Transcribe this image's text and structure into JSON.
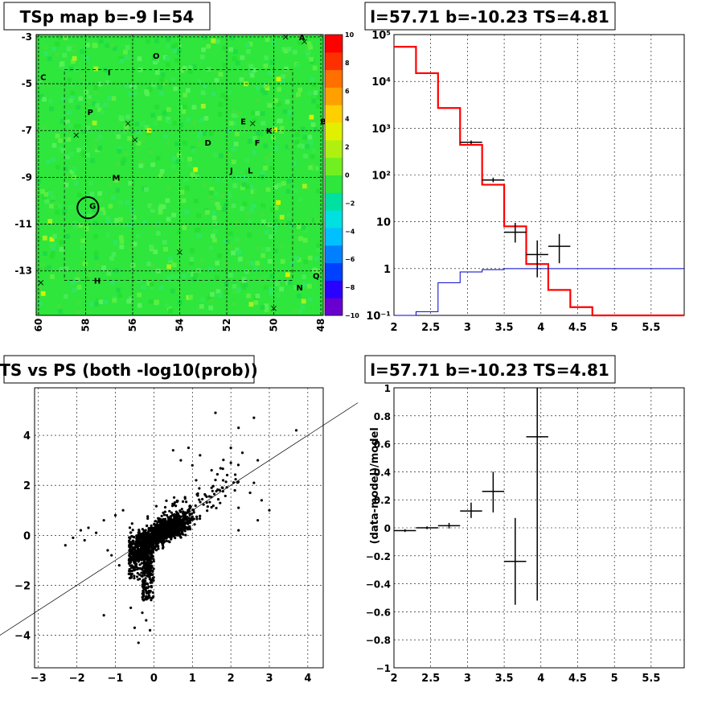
{
  "panels": {
    "tsmap": {
      "title": "TSp map b=-9 l=54"
    },
    "spectrum": {
      "title": "l=57.71 b=-10.23 TS=4.81"
    },
    "scatter": {
      "title": "TS vs PS (both -log10(prob))"
    },
    "residual": {
      "title": "l=57.71 b=-10.23 TS=4.81"
    }
  },
  "colors": {
    "map_bg": "#2ee63c",
    "data": "#000000",
    "model": "#ff0000",
    "source": "#0000cc",
    "grid": "#000000"
  },
  "chart_data": [
    {
      "type": "heatmap",
      "title": "TSp map b=-9 l=54",
      "x_ticks": [
        "60",
        "58",
        "56",
        "54",
        "52",
        "50",
        "48"
      ],
      "xlim": [
        60.1,
        47.9
      ],
      "y_ticks": [
        "-3",
        "-5",
        "-7",
        "-9",
        "-11",
        "-13"
      ],
      "ylim": [
        -14.9,
        -2.9
      ],
      "colorbar": {
        "range": [
          -10,
          10
        ],
        "ticks": [
          "10",
          "8",
          "6",
          "4",
          "2",
          "0",
          "−2",
          "−4",
          "−6",
          "−8",
          "−10"
        ],
        "colors": [
          "#6a00d0",
          "#2a00ff",
          "#0040ff",
          "#0080ff",
          "#00c0ff",
          "#00e0e0",
          "#00e0a0",
          "#2ee63c",
          "#70f020",
          "#b0f010",
          "#e0f000",
          "#ffd000",
          "#ffa000",
          "#ff7000",
          "#ff3000",
          "#ff0000"
        ]
      },
      "source_labels": [
        {
          "text": "A",
          "l": 48.8,
          "b": -3.0
        },
        {
          "text": "O",
          "l": 55.0,
          "b": -3.8
        },
        {
          "text": "C",
          "l": 59.8,
          "b": -4.7
        },
        {
          "text": "I",
          "l": 57.0,
          "b": -4.5
        },
        {
          "text": "P",
          "l": 57.8,
          "b": -6.2
        },
        {
          "text": "B",
          "l": 47.9,
          "b": -6.6
        },
        {
          "text": "E",
          "l": 51.3,
          "b": -6.6
        },
        {
          "text": "K",
          "l": 50.2,
          "b": -7.0
        },
        {
          "text": "F",
          "l": 50.7,
          "b": -7.5
        },
        {
          "text": "D",
          "l": 52.8,
          "b": -7.5
        },
        {
          "text": "J",
          "l": 51.8,
          "b": -8.7
        },
        {
          "text": "L",
          "l": 51.0,
          "b": -8.7
        },
        {
          "text": "M",
          "l": 56.7,
          "b": -9.0
        },
        {
          "text": "G",
          "l": 57.7,
          "b": -10.2
        },
        {
          "text": "H",
          "l": 57.5,
          "b": -13.4
        },
        {
          "text": "Q",
          "l": 48.2,
          "b": -13.2
        },
        {
          "text": "N",
          "l": 48.9,
          "b": -13.7
        }
      ],
      "crosses": [
        {
          "l": 49.5,
          "b": -3.0
        },
        {
          "l": 56.2,
          "b": -6.7
        },
        {
          "l": 55.9,
          "b": -7.4
        },
        {
          "l": 58.4,
          "b": -7.2
        },
        {
          "l": 50.9,
          "b": -6.7
        },
        {
          "l": 54.0,
          "b": -12.2
        },
        {
          "l": 59.9,
          "b": -13.5
        },
        {
          "l": 50.0,
          "b": -14.6
        },
        {
          "l": 48.7,
          "b": -3.2
        }
      ],
      "source_circle": {
        "l": 57.9,
        "b": -10.3,
        "r": 0.45
      }
    },
    {
      "type": "line",
      "title": "l=57.71 b=-10.23 TS=4.81",
      "y_scale": "log",
      "xlim": [
        2,
        5.95
      ],
      "ylim": [
        0.1,
        100000
      ],
      "x_ticks": [
        "2",
        "2.5",
        "3",
        "3.5",
        "4",
        "4.5",
        "5",
        "5.5"
      ],
      "y_ticks": [
        "10⁻¹",
        "1",
        "10",
        "10²",
        "10³",
        "10⁴",
        "10⁵"
      ],
      "series": [
        {
          "type": "step",
          "color": "red",
          "edges": [
            2.0,
            2.3,
            2.6,
            2.9,
            3.2,
            3.5,
            3.8,
            4.1,
            4.4,
            4.7,
            5.0,
            5.3,
            5.6,
            5.95
          ],
          "values": [
            55000,
            15000,
            2700,
            440,
            62,
            8,
            1.25,
            0.35,
            0.15,
            0.1,
            0.1,
            0.1,
            0.1
          ]
        },
        {
          "type": "step",
          "color": "blue",
          "edges": [
            2.0,
            2.3,
            2.6,
            2.9,
            3.2,
            3.5,
            3.8,
            4.1,
            4.4,
            4.7,
            5.0,
            5.3,
            5.6,
            5.95
          ],
          "values": [
            0.1,
            0.12,
            0.5,
            0.85,
            0.95,
            1.0,
            1.0,
            1.0,
            1.0,
            1.0,
            1.0,
            1.0,
            1.0
          ]
        },
        {
          "type": "errorbar",
          "color": "black",
          "points": [
            {
              "x": 3.05,
              "xerr": 0.15,
              "y": 500,
              "ylo": 460,
              "yhi": 545
            },
            {
              "x": 3.35,
              "xerr": 0.15,
              "y": 78,
              "ylo": 70,
              "yhi": 88
            },
            {
              "x": 3.65,
              "xerr": 0.15,
              "y": 6,
              "ylo": 3.6,
              "yhi": 9.5
            },
            {
              "x": 3.95,
              "xerr": 0.15,
              "y": 2,
              "ylo": 0.65,
              "yhi": 4
            },
            {
              "x": 4.25,
              "xerr": 0.15,
              "y": 3,
              "ylo": 1.3,
              "yhi": 5.5
            }
          ]
        }
      ]
    },
    {
      "type": "scatter",
      "title": "TS vs PS (both -log10(prob))",
      "xlim": [
        -3.1,
        4.4
      ],
      "ylim": [
        -5.3,
        5.9
      ],
      "x_ticks": [
        "−3",
        "−2",
        "−1",
        "0",
        "1",
        "2",
        "3",
        "4"
      ],
      "y_ticks": [
        "−4",
        "−2",
        "0",
        "2",
        "4"
      ],
      "reference_line": {
        "x0": -4.0,
        "y0": -4.0,
        "x1": 5.3,
        "y1": 5.3
      },
      "outliers": [
        [
          1.6,
          4.9
        ],
        [
          2.6,
          4.7
        ],
        [
          3.7,
          4.2
        ],
        [
          2.2,
          4.3
        ],
        [
          2.0,
          3.5
        ],
        [
          2.3,
          3.3
        ],
        [
          2.7,
          3.0
        ],
        [
          2.6,
          2.1
        ],
        [
          2.0,
          2.9
        ],
        [
          2.8,
          1.4
        ],
        [
          2.7,
          0.6
        ],
        [
          2.2,
          0.2
        ],
        [
          -2.3,
          -0.4
        ],
        [
          -2.1,
          -0.1
        ],
        [
          -1.9,
          0.2
        ],
        [
          -1.7,
          0.3
        ],
        [
          -1.8,
          -0.2
        ],
        [
          -1.5,
          0.1
        ],
        [
          -1.2,
          -0.6
        ],
        [
          -1.1,
          -0.8
        ],
        [
          -0.6,
          -2.9
        ],
        [
          -0.4,
          -4.3
        ],
        [
          -0.5,
          -3.7
        ],
        [
          -1.3,
          -3.2
        ],
        [
          -0.3,
          -3.1
        ],
        [
          -0.1,
          -3.8
        ],
        [
          -0.2,
          -3.4
        ],
        [
          1.5,
          2.6
        ],
        [
          1.2,
          3.2
        ],
        [
          0.9,
          3.5
        ],
        [
          1.8,
          2.2
        ],
        [
          2.2,
          1.1
        ],
        [
          1.5,
          1.9
        ],
        [
          0.7,
          3.0
        ],
        [
          0.5,
          3.4
        ],
        [
          1.0,
          2.8
        ],
        [
          -1.0,
          0.8
        ],
        [
          -0.8,
          1.0
        ],
        [
          -1.3,
          0.6
        ],
        [
          2.5,
          1.7
        ],
        [
          3.0,
          1.0
        ],
        [
          -0.9,
          -1.2
        ]
      ]
    },
    {
      "type": "scatter",
      "title": "l=57.71 b=-10.23 TS=4.81",
      "xlim": [
        2,
        5.95
      ],
      "ylim": [
        -1,
        1
      ],
      "ylabel": "(data-model)/model",
      "x_ticks": [
        "2",
        "2.5",
        "3",
        "3.5",
        "4",
        "4.5",
        "5",
        "5.5"
      ],
      "y_ticks": [
        "−1",
        "−0.8",
        "−0.6",
        "−0.4",
        "−0.2",
        "0",
        "0.2",
        "0.4",
        "0.6",
        "0.8",
        "1"
      ],
      "points": [
        {
          "x": 2.15,
          "xerr": 0.15,
          "y": -0.02,
          "ylo": -0.03,
          "yhi": -0.01
        },
        {
          "x": 2.45,
          "xerr": 0.15,
          "y": 0.0,
          "ylo": -0.01,
          "yhi": 0.01
        },
        {
          "x": 2.75,
          "xerr": 0.15,
          "y": 0.015,
          "ylo": -0.005,
          "yhi": 0.035
        },
        {
          "x": 3.05,
          "xerr": 0.15,
          "y": 0.12,
          "ylo": 0.07,
          "yhi": 0.18
        },
        {
          "x": 3.35,
          "xerr": 0.15,
          "y": 0.26,
          "ylo": 0.11,
          "yhi": 0.4
        },
        {
          "x": 3.65,
          "xerr": 0.15,
          "y": -0.24,
          "ylo": -0.55,
          "yhi": 0.07
        },
        {
          "x": 3.95,
          "xerr": 0.15,
          "y": 0.65,
          "ylo": -0.52,
          "yhi": 1.0
        }
      ]
    }
  ]
}
